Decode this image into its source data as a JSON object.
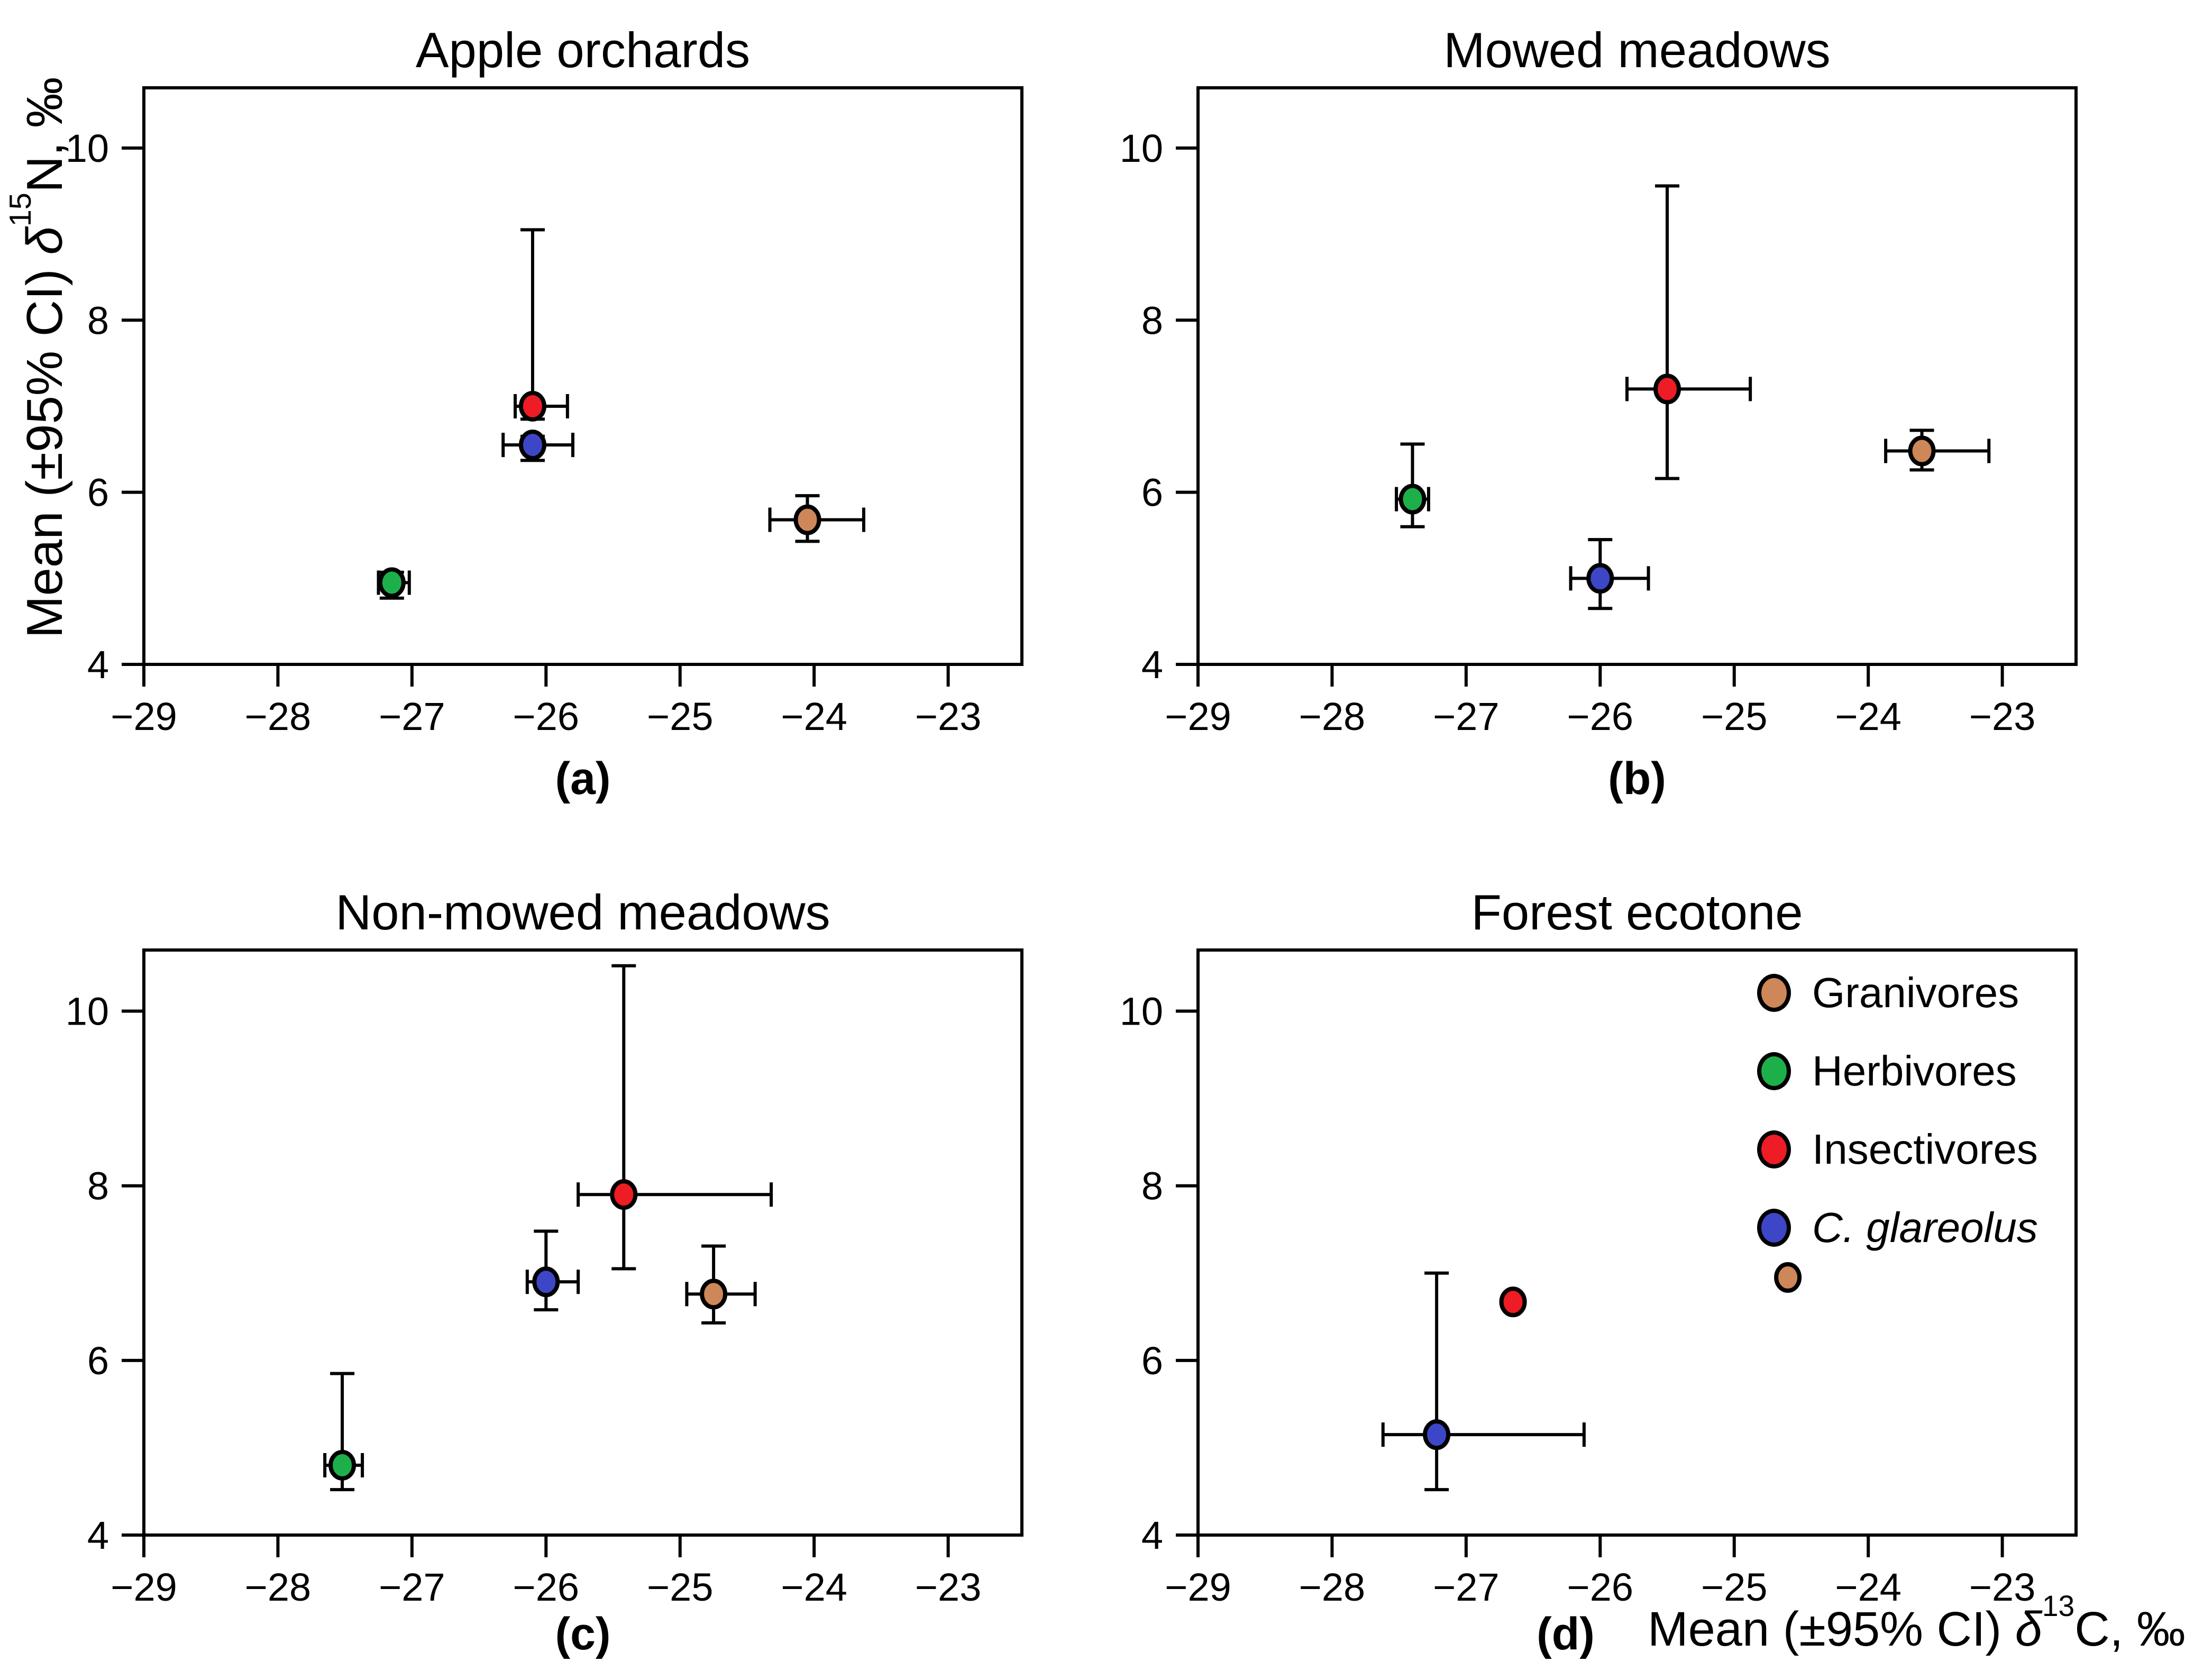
{
  "axis_labels": {
    "y": {
      "prefix": "Mean (±95% CI) ",
      "delta": "δ",
      "superscript": "15",
      "suffix": "N, ‰"
    },
    "x": {
      "prefix": "Mean (±95% CI) ",
      "delta": "δ",
      "superscript": "13",
      "suffix": "C, ‰"
    }
  },
  "legend": {
    "items": [
      {
        "key": "granivores",
        "label": "Granivores",
        "color": "#CD8758",
        "italic": false
      },
      {
        "key": "herbivores",
        "label": "Herbivores",
        "color": "#1DB04A",
        "italic": false
      },
      {
        "key": "insectivores",
        "label": "Insectivores",
        "color": "#EE1C25",
        "italic": false
      },
      {
        "key": "c_glareolus",
        "label": "C. glareolus",
        "color": "#3E46C8",
        "italic": true
      }
    ]
  },
  "chart_data": [
    {
      "type": "scatter",
      "panel": "a",
      "title": "Apple orchards",
      "panel_label": "(a)",
      "xlabel": "Mean (±95% CI) δ13C, ‰",
      "ylabel": "Mean (±95% CI) δ15N, ‰",
      "xlim": [
        -29,
        -22.45
      ],
      "ylim": [
        4,
        10.7
      ],
      "xticks": [
        -29,
        -28,
        -27,
        -26,
        -25,
        -24,
        -23
      ],
      "yticks": [
        4,
        6,
        8,
        10
      ],
      "grid": false,
      "points": [
        {
          "key": "granivores",
          "series": "Granivores",
          "x": -24.05,
          "y": 5.68,
          "xerr_left": 0.28,
          "xerr_right": 0.42,
          "yerr_up": 0.28,
          "yerr_down": 0.25
        },
        {
          "key": "herbivores",
          "series": "Herbivores",
          "x": -27.15,
          "y": 4.95,
          "xerr_left": 0.1,
          "xerr_right": 0.13,
          "yerr_up": 0.12,
          "yerr_down": 0.18
        },
        {
          "key": "insectivores",
          "series": "Insectivores",
          "x": -26.1,
          "y": 7.0,
          "xerr_left": 0.13,
          "xerr_right": 0.26,
          "yerr_up": 2.05,
          "yerr_down": 0.15
        },
        {
          "key": "c_glareolus",
          "series": "C. glareolus",
          "x": -26.1,
          "y": 6.55,
          "xerr_left": 0.22,
          "xerr_right": 0.3,
          "yerr_up": 0.1,
          "yerr_down": 0.18
        }
      ]
    },
    {
      "type": "scatter",
      "panel": "b",
      "title": "Mowed meadows",
      "panel_label": "(b)",
      "xlim": [
        -29,
        -22.45
      ],
      "ylim": [
        4,
        10.7
      ],
      "xticks": [
        -29,
        -28,
        -27,
        -26,
        -25,
        -24,
        -23
      ],
      "yticks": [
        4,
        6,
        8,
        10
      ],
      "grid": false,
      "points": [
        {
          "key": "granivores",
          "series": "Granivores",
          "x": -23.6,
          "y": 6.48,
          "xerr_left": 0.27,
          "xerr_right": 0.5,
          "yerr_up": 0.24,
          "yerr_down": 0.22
        },
        {
          "key": "herbivores",
          "series": "Herbivores",
          "x": -27.4,
          "y": 5.92,
          "xerr_left": 0.12,
          "xerr_right": 0.12,
          "yerr_up": 0.64,
          "yerr_down": 0.32
        },
        {
          "key": "insectivores",
          "series": "Insectivores",
          "x": -25.5,
          "y": 7.2,
          "xerr_left": 0.3,
          "xerr_right": 0.62,
          "yerr_up": 2.36,
          "yerr_down": 1.04
        },
        {
          "key": "c_glareolus",
          "series": "C. glareolus",
          "x": -26.0,
          "y": 5.0,
          "xerr_left": 0.22,
          "xerr_right": 0.36,
          "yerr_up": 0.45,
          "yerr_down": 0.35
        }
      ]
    },
    {
      "type": "scatter",
      "panel": "c",
      "title": "Non-mowed meadows",
      "panel_label": "(c)",
      "xlim": [
        -29,
        -22.45
      ],
      "ylim": [
        4,
        10.7
      ],
      "xticks": [
        -29,
        -28,
        -27,
        -26,
        -25,
        -24,
        -23
      ],
      "yticks": [
        4,
        6,
        8,
        10
      ],
      "grid": false,
      "points": [
        {
          "key": "granivores",
          "series": "Granivores",
          "x": -24.75,
          "y": 6.76,
          "xerr_left": 0.2,
          "xerr_right": 0.31,
          "yerr_up": 0.55,
          "yerr_down": 0.33
        },
        {
          "key": "herbivores",
          "series": "Herbivores",
          "x": -27.52,
          "y": 4.8,
          "xerr_left": 0.13,
          "xerr_right": 0.15,
          "yerr_up": 1.05,
          "yerr_down": 0.28
        },
        {
          "key": "insectivores",
          "series": "Insectivores",
          "x": -25.42,
          "y": 7.9,
          "xerr_left": 0.34,
          "xerr_right": 1.1,
          "yerr_up": 2.62,
          "yerr_down": 0.85
        },
        {
          "key": "c_glareolus",
          "series": "C. glareolus",
          "x": -26.0,
          "y": 6.9,
          "xerr_left": 0.14,
          "xerr_right": 0.24,
          "yerr_up": 0.58,
          "yerr_down": 0.32
        }
      ]
    },
    {
      "type": "scatter",
      "panel": "d",
      "title": "Forest ecotone",
      "panel_label": "(d)",
      "xlim": [
        -29,
        -22.45
      ],
      "ylim": [
        4,
        10.7
      ],
      "xticks": [
        -29,
        -28,
        -27,
        -26,
        -25,
        -24,
        -23
      ],
      "yticks": [
        4,
        6,
        8,
        10
      ],
      "grid": false,
      "legend_position": "top-right",
      "points": [
        {
          "key": "granivores",
          "series": "Granivores",
          "x": -24.6,
          "y": 6.95,
          "xerr_left": 0,
          "xerr_right": 0,
          "yerr_up": 0,
          "yerr_down": 0
        },
        {
          "key": "insectivores",
          "series": "Insectivores",
          "x": -26.65,
          "y": 6.67,
          "xerr_left": 0,
          "xerr_right": 0,
          "yerr_up": 0,
          "yerr_down": 0
        },
        {
          "key": "c_glareolus",
          "series": "C. glareolus",
          "x": -27.22,
          "y": 5.15,
          "xerr_left": 0.4,
          "xerr_right": 1.1,
          "yerr_up": 1.85,
          "yerr_down": 0.63
        }
      ]
    }
  ]
}
